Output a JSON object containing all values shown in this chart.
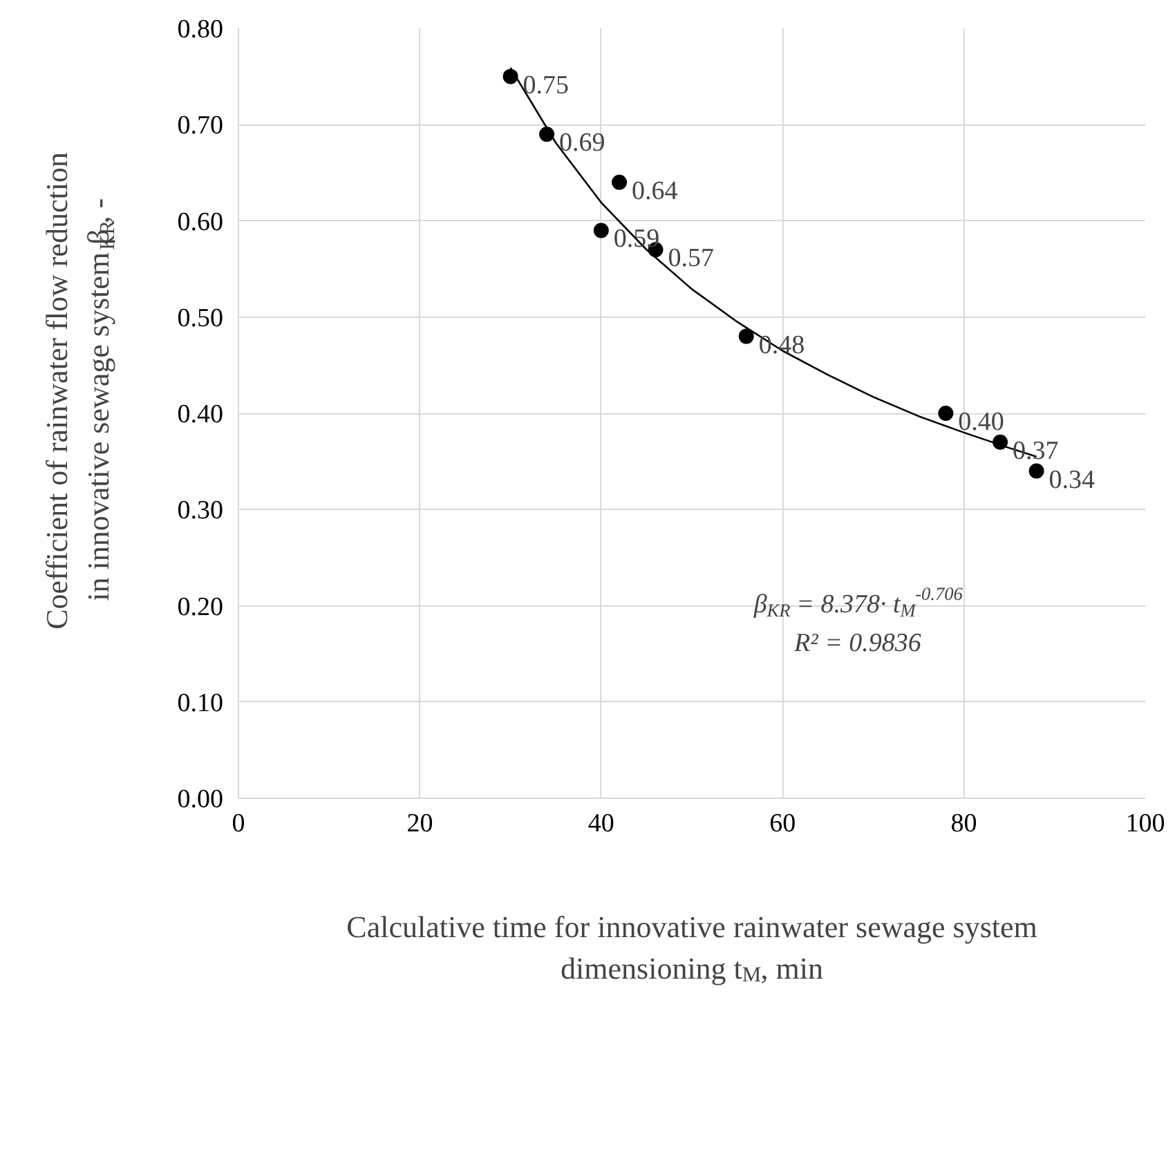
{
  "chart_data": {
    "type": "scatter",
    "xlabel": "Calculative time for innovative rainwater sewage system\ndimensioning t$_{M}$, min",
    "ylabel": "Coefficient of rainwater flow reduction\nin innovative sewage system β$_{KR}$, -",
    "xlim": [
      0,
      100
    ],
    "xticks": [
      0,
      20,
      40,
      60,
      80,
      100
    ],
    "ylim": [
      0,
      0.8
    ],
    "yticks": [
      {
        "value": 0,
        "label": "0.00"
      },
      {
        "value": 0.1,
        "label": "0.10"
      },
      {
        "value": 0.2,
        "label": "0.20"
      },
      {
        "value": 0.3,
        "label": "0.30"
      },
      {
        "value": 0.4,
        "label": "0.40"
      },
      {
        "value": 0.5,
        "label": "0.50"
      },
      {
        "value": 0.6,
        "label": "0.60"
      },
      {
        "value": 0.7,
        "label": "0.70"
      },
      {
        "value": 0.8,
        "label": "0.80"
      }
    ],
    "grid": true,
    "series": [
      {
        "marker": "circle",
        "color": "#000000",
        "x": [
          30,
          34,
          42,
          40,
          46,
          56,
          78,
          84,
          88
        ],
        "values": [
          0.75,
          0.69,
          0.64,
          0.59,
          0.57,
          0.48,
          0.4,
          0.37,
          0.34
        ],
        "value_labels": [
          "0.75",
          "0.69",
          "0.64",
          "0.59",
          "0.57",
          "0.48",
          "0.40",
          "0.37",
          "0.34"
        ]
      },
      {
        "type": "line",
        "color": "#000000",
        "x": [
          30,
          35,
          40,
          45,
          50,
          55,
          60,
          65,
          70,
          75,
          80,
          85,
          88
        ],
        "values": [
          0.759,
          0.681,
          0.619,
          0.57,
          0.529,
          0.495,
          0.465,
          0.44,
          0.417,
          0.397,
          0.38,
          0.364,
          0.355
        ]
      }
    ],
    "annotations": [
      "β$_{KR}$ = 8.378· t$_{M}$$^{-0.706}$",
      "R² = 0.9836"
    ]
  }
}
